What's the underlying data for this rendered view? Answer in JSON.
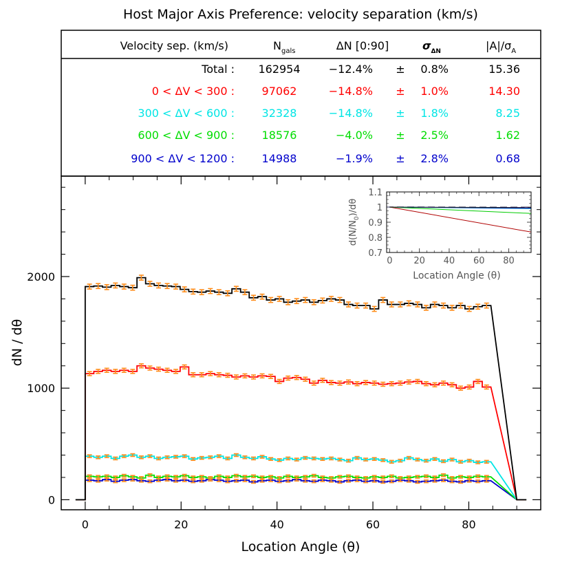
{
  "title": "Host Major Axis Preference: velocity separation (km/s)",
  "table": {
    "headers": {
      "velocity": "Velocity sep. (km/s)",
      "ngals_main": "N",
      "ngals_sub": "gals",
      "dn": "ΔN [0:90]",
      "sigma_main": "σ",
      "sigma_sub": "ΔN",
      "ratio_main": "|A|/σ",
      "ratio_sub": "A"
    },
    "rows": [
      {
        "label": "Total :",
        "ngals": "162954",
        "dn": "−12.4%",
        "pm": "±",
        "sigma": "0.8%",
        "ratio": "15.36",
        "color": "#000000"
      },
      {
        "label": "0 < ΔV < 300 :",
        "ngals": "97062",
        "dn": "−14.8%",
        "pm": "±",
        "sigma": "1.0%",
        "ratio": "14.30",
        "color": "#ff0000"
      },
      {
        "label": "300 < ΔV < 600 :",
        "ngals": "32328",
        "dn": "−14.8%",
        "pm": "±",
        "sigma": "1.8%",
        "ratio": "8.25",
        "color": "#00e5e5"
      },
      {
        "label": "600 < ΔV < 900 :",
        "ngals": "18576",
        "dn": "−4.0%",
        "pm": "±",
        "sigma": "2.5%",
        "ratio": "1.62",
        "color": "#00dd00"
      },
      {
        "label": "900 < ΔV < 1200 :",
        "ngals": "14988",
        "dn": "−1.9%",
        "pm": "±",
        "sigma": "2.8%",
        "ratio": "0.68",
        "color": "#0000cc"
      }
    ]
  },
  "chart_data": [
    {
      "type": "line",
      "style": "step histogram with error bars",
      "xlabel": "Location Angle (θ)",
      "ylabel": "dN / dθ",
      "xlim": [
        -5,
        95
      ],
      "ylim": [
        -90,
        2900
      ],
      "xticks": [
        0,
        20,
        40,
        60,
        80
      ],
      "yticks": [
        0,
        1000,
        2000
      ],
      "errorbar_color": "#ff8c1a",
      "bin_width": 1.8,
      "series": [
        {
          "color": "#000000",
          "values": [
            1910,
            1915,
            1905,
            1920,
            1910,
            1900,
            1990,
            1935,
            1920,
            1915,
            1910,
            1885,
            1865,
            1860,
            1870,
            1860,
            1850,
            1890,
            1860,
            1810,
            1820,
            1790,
            1800,
            1770,
            1780,
            1790,
            1770,
            1785,
            1800,
            1790,
            1750,
            1740,
            1740,
            1710,
            1790,
            1750,
            1750,
            1760,
            1750,
            1720,
            1750,
            1740,
            1720,
            1740,
            1710,
            1730,
            1740
          ]
        },
        {
          "color": "#ff0000",
          "values": [
            1130,
            1150,
            1160,
            1150,
            1160,
            1150,
            1200,
            1180,
            1170,
            1160,
            1150,
            1190,
            1120,
            1120,
            1130,
            1120,
            1115,
            1100,
            1110,
            1100,
            1110,
            1105,
            1060,
            1090,
            1095,
            1080,
            1045,
            1070,
            1050,
            1045,
            1055,
            1040,
            1050,
            1045,
            1035,
            1040,
            1045,
            1055,
            1060,
            1040,
            1030,
            1045,
            1030,
            1000,
            1010,
            1060,
            1010
          ]
        },
        {
          "color": "#00e5e5",
          "values": [
            390,
            380,
            390,
            370,
            390,
            400,
            380,
            390,
            370,
            380,
            385,
            390,
            365,
            375,
            380,
            390,
            370,
            400,
            380,
            370,
            385,
            365,
            355,
            370,
            360,
            375,
            370,
            365,
            370,
            360,
            350,
            375,
            360,
            365,
            355,
            340,
            350,
            375,
            360,
            350,
            365,
            345,
            360,
            340,
            350,
            335,
            340
          ]
        },
        {
          "color": "#00dd00",
          "values": [
            210,
            205,
            210,
            200,
            215,
            205,
            195,
            220,
            200,
            210,
            205,
            215,
            200,
            205,
            195,
            210,
            200,
            215,
            205,
            210,
            200,
            205,
            195,
            210,
            200,
            205,
            215,
            200,
            195,
            205,
            210,
            200,
            195,
            205,
            200,
            210,
            195,
            200,
            205,
            210,
            200,
            220,
            195,
            205,
            200,
            210,
            205
          ]
        },
        {
          "color": "#0000cc",
          "values": [
            175,
            170,
            180,
            165,
            175,
            180,
            170,
            165,
            175,
            180,
            170,
            175,
            165,
            170,
            180,
            175,
            165,
            170,
            175,
            160,
            170,
            175,
            165,
            170,
            180,
            170,
            165,
            175,
            170,
            160,
            170,
            175,
            165,
            170,
            160,
            165,
            175,
            170,
            160,
            165,
            170,
            175,
            165,
            160,
            170,
            165,
            170
          ]
        }
      ]
    },
    {
      "type": "line",
      "xlabel": "Location Angle (θ)",
      "ylabel": "d(N/N",
      "ylabel_sub": "0",
      "ylabel_tail": ")/dθ",
      "xlim": [
        -2,
        95
      ],
      "ylim": [
        0.7,
        1.1
      ],
      "xticks": [
        0,
        20,
        40,
        60,
        80
      ],
      "yticks": [
        0.7,
        0.8,
        0.9,
        1,
        1.1
      ],
      "reference_line": {
        "y": 1.0,
        "color": "#9a9ab0",
        "style": "dashed"
      },
      "series": [
        {
          "color": "#b00000",
          "x": [
            0,
            95
          ],
          "y": [
            1.0,
            0.835
          ]
        },
        {
          "color": "#00cc00",
          "x": [
            0,
            95
          ],
          "y": [
            1.0,
            0.958
          ]
        },
        {
          "color": "#00bcbc",
          "x": [
            0,
            95
          ],
          "y": [
            1.0,
            0.99
          ]
        },
        {
          "color": "#0000bb",
          "x": [
            0,
            95
          ],
          "y": [
            1.0,
            0.993
          ]
        },
        {
          "color": "#202020",
          "x": [
            0,
            95
          ],
          "y": [
            1.0,
            0.997
          ]
        }
      ]
    }
  ]
}
